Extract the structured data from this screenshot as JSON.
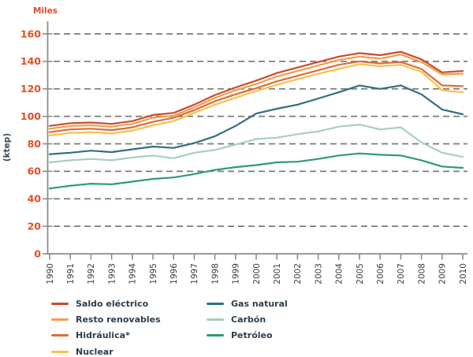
{
  "figure": {
    "unit_label": "Miles",
    "y_axis_label": "(ktep)"
  },
  "colors": {
    "background": "#ffffff",
    "axis": "#8c8c8c",
    "grid": "#7b7b7b",
    "y_tick_label": "#e44d26",
    "x_tick_label": "#3d3d3d",
    "unit_label": "#e44d26",
    "y_axis_label_text": "#3a4a57",
    "legend_text": "#2e3e4a"
  },
  "chart_data": {
    "type": "line",
    "title": "",
    "xlabel": "",
    "ylabel": "(ktep)",
    "unit_label": "Miles",
    "ylim": [
      0,
      160
    ],
    "yticks": [
      0,
      20,
      40,
      60,
      80,
      100,
      120,
      140,
      160
    ],
    "grid": "horizontal dashed gridlines at each y tick",
    "legend_position": "below chart, two columns",
    "x": [
      1990,
      1991,
      1992,
      1993,
      1994,
      1995,
      1996,
      1997,
      1998,
      1999,
      2000,
      2001,
      2002,
      2003,
      2004,
      2005,
      2006,
      2007,
      2008,
      2009,
      2010
    ],
    "series": [
      {
        "name": "Saldo eléctrico",
        "color": "#c94b2e",
        "values": [
          93,
          95,
          95.5,
          94.5,
          96.5,
          101,
          102.5,
          108.5,
          115.5,
          121,
          126,
          131.5,
          135.5,
          139.5,
          143.5,
          146,
          144.5,
          147,
          141.5,
          132,
          133
        ]
      },
      {
        "name": "Resto renovables",
        "color": "#ef9e4a",
        "values": [
          91,
          93,
          93.5,
          92.5,
          94.5,
          99,
          100.5,
          106.5,
          113.5,
          119,
          123.5,
          129,
          133,
          137,
          141,
          143.5,
          142,
          145,
          139.5,
          130.5,
          131
        ]
      },
      {
        "name": "Hidráulica*",
        "color": "#e16a3b",
        "values": [
          88.5,
          90.5,
          91,
          90,
          92,
          96,
          99,
          104.5,
          111,
          116,
          120.5,
          125.5,
          129.5,
          133.5,
          137.5,
          140,
          138.5,
          139.5,
          134.5,
          122.5,
          122
        ]
      },
      {
        "name": "Nuclear",
        "color": "#f6c24e",
        "values": [
          86,
          88,
          88.5,
          87.5,
          89.5,
          93.5,
          96.5,
          102.5,
          108.5,
          113.5,
          118.5,
          123,
          127,
          131,
          134.5,
          138,
          136.5,
          137.5,
          132.5,
          119,
          117.5
        ]
      },
      {
        "name": "Gas natural",
        "color": "#326f7f",
        "values": [
          72.5,
          73.5,
          75,
          74,
          76,
          78,
          77,
          80.5,
          85.5,
          93,
          102,
          105.5,
          108.5,
          113,
          117.5,
          122.5,
          120,
          122.5,
          116,
          105,
          101.5
        ]
      },
      {
        "name": "Carbón",
        "color": "#a8cebe",
        "values": [
          66.5,
          68,
          69,
          68,
          70,
          71.5,
          69.5,
          73.5,
          75.5,
          79.5,
          83.5,
          84.5,
          87,
          89,
          92.5,
          94,
          90.5,
          92,
          81,
          73.5,
          70.5
        ]
      },
      {
        "name": "Petróleo",
        "color": "#2f9b73",
        "values": [
          47.5,
          49.5,
          51,
          50.5,
          52.5,
          54.5,
          55.5,
          58,
          61,
          63,
          64.5,
          66.5,
          67,
          69,
          71.5,
          73,
          72,
          71.5,
          68,
          63.5,
          62.5
        ]
      }
    ],
    "legend_columns": [
      [
        "Saldo eléctrico",
        "Resto renovables",
        "Hidráulica*",
        "Nuclear"
      ],
      [
        "Gas natural",
        "Carbón",
        "Petróleo"
      ]
    ]
  }
}
